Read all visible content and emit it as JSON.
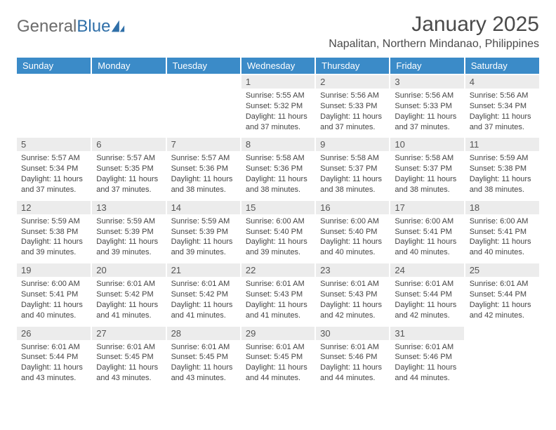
{
  "logo": {
    "text_gray": "General",
    "text_blue": "Blue",
    "shape_color": "#2f6fa8"
  },
  "title": "January 2025",
  "location": "Napalitan, Northern Mindanao, Philippines",
  "header_bg": "#3b8bc8",
  "header_fg": "#ffffff",
  "daynum_bg": "#ececec",
  "text_fontsize": 11,
  "days_of_week": [
    "Sunday",
    "Monday",
    "Tuesday",
    "Wednesday",
    "Thursday",
    "Friday",
    "Saturday"
  ],
  "first_weekday": 3,
  "days": [
    {
      "n": 1,
      "sr": "5:55 AM",
      "ss": "5:32 PM",
      "dh": 11,
      "dm": 37
    },
    {
      "n": 2,
      "sr": "5:56 AM",
      "ss": "5:33 PM",
      "dh": 11,
      "dm": 37
    },
    {
      "n": 3,
      "sr": "5:56 AM",
      "ss": "5:33 PM",
      "dh": 11,
      "dm": 37
    },
    {
      "n": 4,
      "sr": "5:56 AM",
      "ss": "5:34 PM",
      "dh": 11,
      "dm": 37
    },
    {
      "n": 5,
      "sr": "5:57 AM",
      "ss": "5:34 PM",
      "dh": 11,
      "dm": 37
    },
    {
      "n": 6,
      "sr": "5:57 AM",
      "ss": "5:35 PM",
      "dh": 11,
      "dm": 37
    },
    {
      "n": 7,
      "sr": "5:57 AM",
      "ss": "5:36 PM",
      "dh": 11,
      "dm": 38
    },
    {
      "n": 8,
      "sr": "5:58 AM",
      "ss": "5:36 PM",
      "dh": 11,
      "dm": 38
    },
    {
      "n": 9,
      "sr": "5:58 AM",
      "ss": "5:37 PM",
      "dh": 11,
      "dm": 38
    },
    {
      "n": 10,
      "sr": "5:58 AM",
      "ss": "5:37 PM",
      "dh": 11,
      "dm": 38
    },
    {
      "n": 11,
      "sr": "5:59 AM",
      "ss": "5:38 PM",
      "dh": 11,
      "dm": 38
    },
    {
      "n": 12,
      "sr": "5:59 AM",
      "ss": "5:38 PM",
      "dh": 11,
      "dm": 39
    },
    {
      "n": 13,
      "sr": "5:59 AM",
      "ss": "5:39 PM",
      "dh": 11,
      "dm": 39
    },
    {
      "n": 14,
      "sr": "5:59 AM",
      "ss": "5:39 PM",
      "dh": 11,
      "dm": 39
    },
    {
      "n": 15,
      "sr": "6:00 AM",
      "ss": "5:40 PM",
      "dh": 11,
      "dm": 39
    },
    {
      "n": 16,
      "sr": "6:00 AM",
      "ss": "5:40 PM",
      "dh": 11,
      "dm": 40
    },
    {
      "n": 17,
      "sr": "6:00 AM",
      "ss": "5:41 PM",
      "dh": 11,
      "dm": 40
    },
    {
      "n": 18,
      "sr": "6:00 AM",
      "ss": "5:41 PM",
      "dh": 11,
      "dm": 40
    },
    {
      "n": 19,
      "sr": "6:00 AM",
      "ss": "5:41 PM",
      "dh": 11,
      "dm": 40
    },
    {
      "n": 20,
      "sr": "6:01 AM",
      "ss": "5:42 PM",
      "dh": 11,
      "dm": 41
    },
    {
      "n": 21,
      "sr": "6:01 AM",
      "ss": "5:42 PM",
      "dh": 11,
      "dm": 41
    },
    {
      "n": 22,
      "sr": "6:01 AM",
      "ss": "5:43 PM",
      "dh": 11,
      "dm": 41
    },
    {
      "n": 23,
      "sr": "6:01 AM",
      "ss": "5:43 PM",
      "dh": 11,
      "dm": 42
    },
    {
      "n": 24,
      "sr": "6:01 AM",
      "ss": "5:44 PM",
      "dh": 11,
      "dm": 42
    },
    {
      "n": 25,
      "sr": "6:01 AM",
      "ss": "5:44 PM",
      "dh": 11,
      "dm": 42
    },
    {
      "n": 26,
      "sr": "6:01 AM",
      "ss": "5:44 PM",
      "dh": 11,
      "dm": 43
    },
    {
      "n": 27,
      "sr": "6:01 AM",
      "ss": "5:45 PM",
      "dh": 11,
      "dm": 43
    },
    {
      "n": 28,
      "sr": "6:01 AM",
      "ss": "5:45 PM",
      "dh": 11,
      "dm": 43
    },
    {
      "n": 29,
      "sr": "6:01 AM",
      "ss": "5:45 PM",
      "dh": 11,
      "dm": 44
    },
    {
      "n": 30,
      "sr": "6:01 AM",
      "ss": "5:46 PM",
      "dh": 11,
      "dm": 44
    },
    {
      "n": 31,
      "sr": "6:01 AM",
      "ss": "5:46 PM",
      "dh": 11,
      "dm": 44
    }
  ],
  "line_templates": {
    "sunrise": "Sunrise: {sr}",
    "sunset": "Sunset: {ss}",
    "daylight": "Daylight: {dh} hours and {dm} minutes."
  }
}
